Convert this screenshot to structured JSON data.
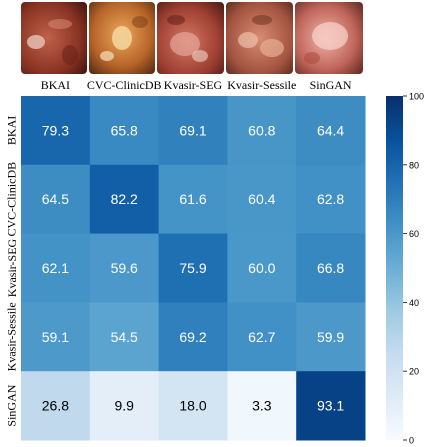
{
  "chart_data": {
    "type": "heatmap",
    "title": "",
    "xlabel": "",
    "ylabel": "",
    "columns": [
      "BKAI",
      "CVC-ClinicDB",
      "Kvasir-SEG",
      "Kvasir-Sessile",
      "SinGAN"
    ],
    "rows": [
      "BKAI",
      "CVC-ClinicDB",
      "Kvasir-SEG",
      "Kvasir-Sessile",
      "SinGAN"
    ],
    "values": [
      [
        79.3,
        65.8,
        69.1,
        60.8,
        64.4
      ],
      [
        64.5,
        82.2,
        61.6,
        60.4,
        62.8
      ],
      [
        62.1,
        59.6,
        75.9,
        60.0,
        66.8
      ],
      [
        59.1,
        54.5,
        69.2,
        62.7,
        59.9
      ],
      [
        26.8,
        9.9,
        18.0,
        3.3,
        93.1
      ]
    ],
    "value_labels": [
      [
        "79.3",
        "65.8",
        "69.1",
        "60.8",
        "64.4"
      ],
      [
        "64.5",
        "82.2",
        "61.6",
        "60.4",
        "62.8"
      ],
      [
        "62.1",
        "59.6",
        "75.9",
        "60.0",
        "66.8"
      ],
      [
        "59.1",
        "54.5",
        "69.2",
        "62.7",
        "59.9"
      ],
      [
        "26.8",
        "9.9",
        "18.0",
        "3.3",
        "93.1"
      ]
    ],
    "colorbar": {
      "range": [
        0,
        100
      ],
      "ticks": [
        0,
        20,
        40,
        60,
        80,
        100
      ],
      "tick_labels": [
        "0",
        "20",
        "40",
        "60",
        "80",
        "100"
      ],
      "colormap": "Blues"
    },
    "thumbnails": [
      {
        "column": "BKAI",
        "depicts": "endoscopic polyp image"
      },
      {
        "column": "CVC-ClinicDB",
        "depicts": "endoscopic polyp image"
      },
      {
        "column": "Kvasir-SEG",
        "depicts": "endoscopic polyp image"
      },
      {
        "column": "Kvasir-Sessile",
        "depicts": "endoscopic polyp image"
      },
      {
        "column": "SinGAN",
        "depicts": "endoscopic polyp image"
      }
    ]
  }
}
